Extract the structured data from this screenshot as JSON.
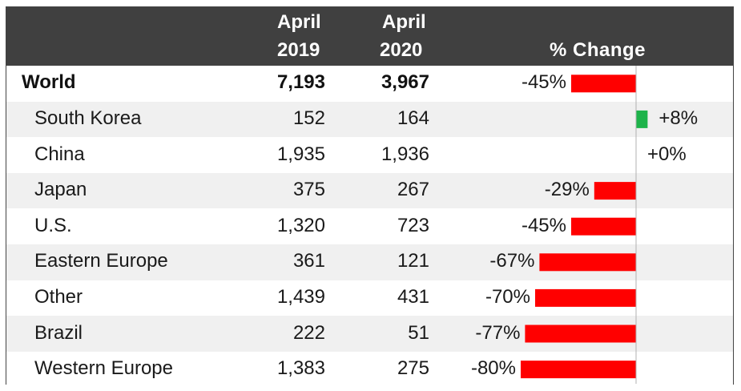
{
  "table": {
    "headers": {
      "col_2019_line1": "April",
      "col_2019_line2": "2019",
      "col_2020_line1": "April",
      "col_2020_line2": "2020",
      "change": "% Change"
    }
  },
  "chart_data": {
    "type": "bar",
    "categories": [
      "World",
      "South Korea",
      "China",
      "Japan",
      "U.S.",
      "Eastern Europe",
      "Other",
      "Brazil",
      "Western Europe"
    ],
    "april_2019": [
      "7,193",
      "152",
      "1,935",
      "375",
      "1,320",
      "361",
      "1,439",
      "222",
      "1,383"
    ],
    "april_2020": [
      "3,967",
      "164",
      "1,936",
      "267",
      "723",
      "121",
      "431",
      "51",
      "275"
    ],
    "values": [
      -45,
      8,
      0,
      -29,
      -45,
      -67,
      -70,
      -77,
      -80
    ],
    "value_labels": [
      "-45%",
      "+8%",
      "+0%",
      "-29%",
      "-45%",
      "-67%",
      "-70%",
      "-77%",
      "-80%"
    ],
    "ylabel": "% Change",
    "positive_color": "#1db34a",
    "negative_color": "#ff0000",
    "zero_axis_color": "#b0b0b0",
    "header_color": "#404040",
    "stripe_color": "#f0f0f0"
  }
}
